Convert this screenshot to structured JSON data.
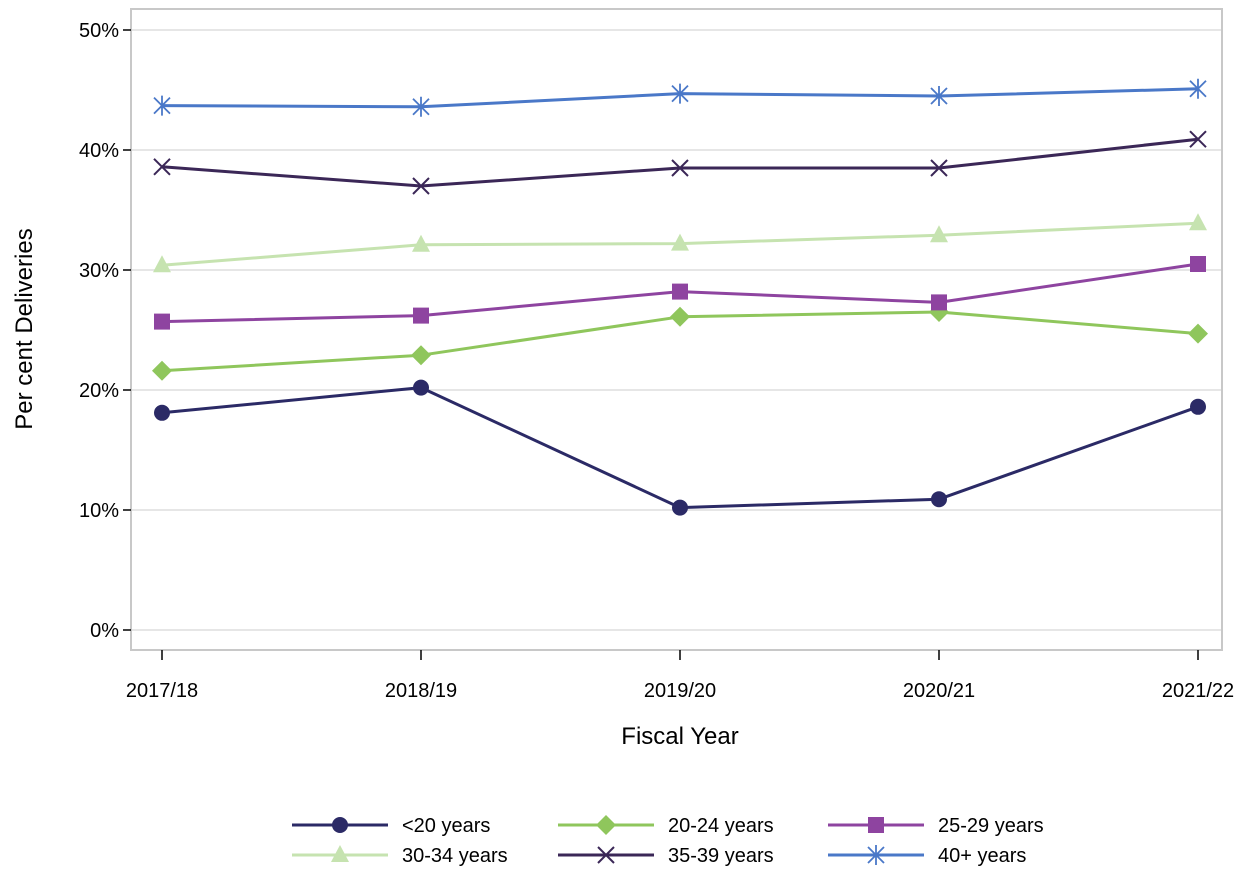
{
  "chart_data": {
    "type": "line",
    "title": "",
    "xlabel": "Fiscal Year",
    "ylabel": "Per cent Deliveries",
    "categories": [
      "2017/18",
      "2018/19",
      "2019/20",
      "2020/21",
      "2021/22"
    ],
    "ylim": [
      0,
      50
    ],
    "yticks": [
      0,
      10,
      20,
      30,
      40,
      50
    ],
    "ytick_labels": [
      "0%",
      "10%",
      "20%",
      "30%",
      "40%",
      "50%"
    ],
    "grid": true,
    "legend_position": "bottom",
    "series": [
      {
        "name": "<20 years",
        "color": "#2b2a66",
        "marker": "circle",
        "values": [
          18.1,
          20.2,
          10.2,
          10.9,
          18.6
        ]
      },
      {
        "name": "20-24 years",
        "color": "#8fc65c",
        "marker": "diamond",
        "values": [
          21.6,
          22.9,
          26.1,
          26.5,
          24.7
        ]
      },
      {
        "name": "25-29 years",
        "color": "#8e44a0",
        "marker": "square",
        "values": [
          25.7,
          26.2,
          28.2,
          27.3,
          30.5
        ]
      },
      {
        "name": "30-34 years",
        "color": "#c6e3b0",
        "marker": "triangle",
        "values": [
          30.4,
          32.1,
          32.2,
          32.9,
          33.9
        ]
      },
      {
        "name": "35-39 years",
        "color": "#3b2757",
        "marker": "x",
        "values": [
          38.6,
          37.0,
          38.5,
          38.5,
          40.9
        ]
      },
      {
        "name": "40+ years",
        "color": "#4a78c8",
        "marker": "star",
        "values": [
          43.7,
          43.6,
          44.7,
          44.5,
          45.1
        ]
      }
    ]
  }
}
